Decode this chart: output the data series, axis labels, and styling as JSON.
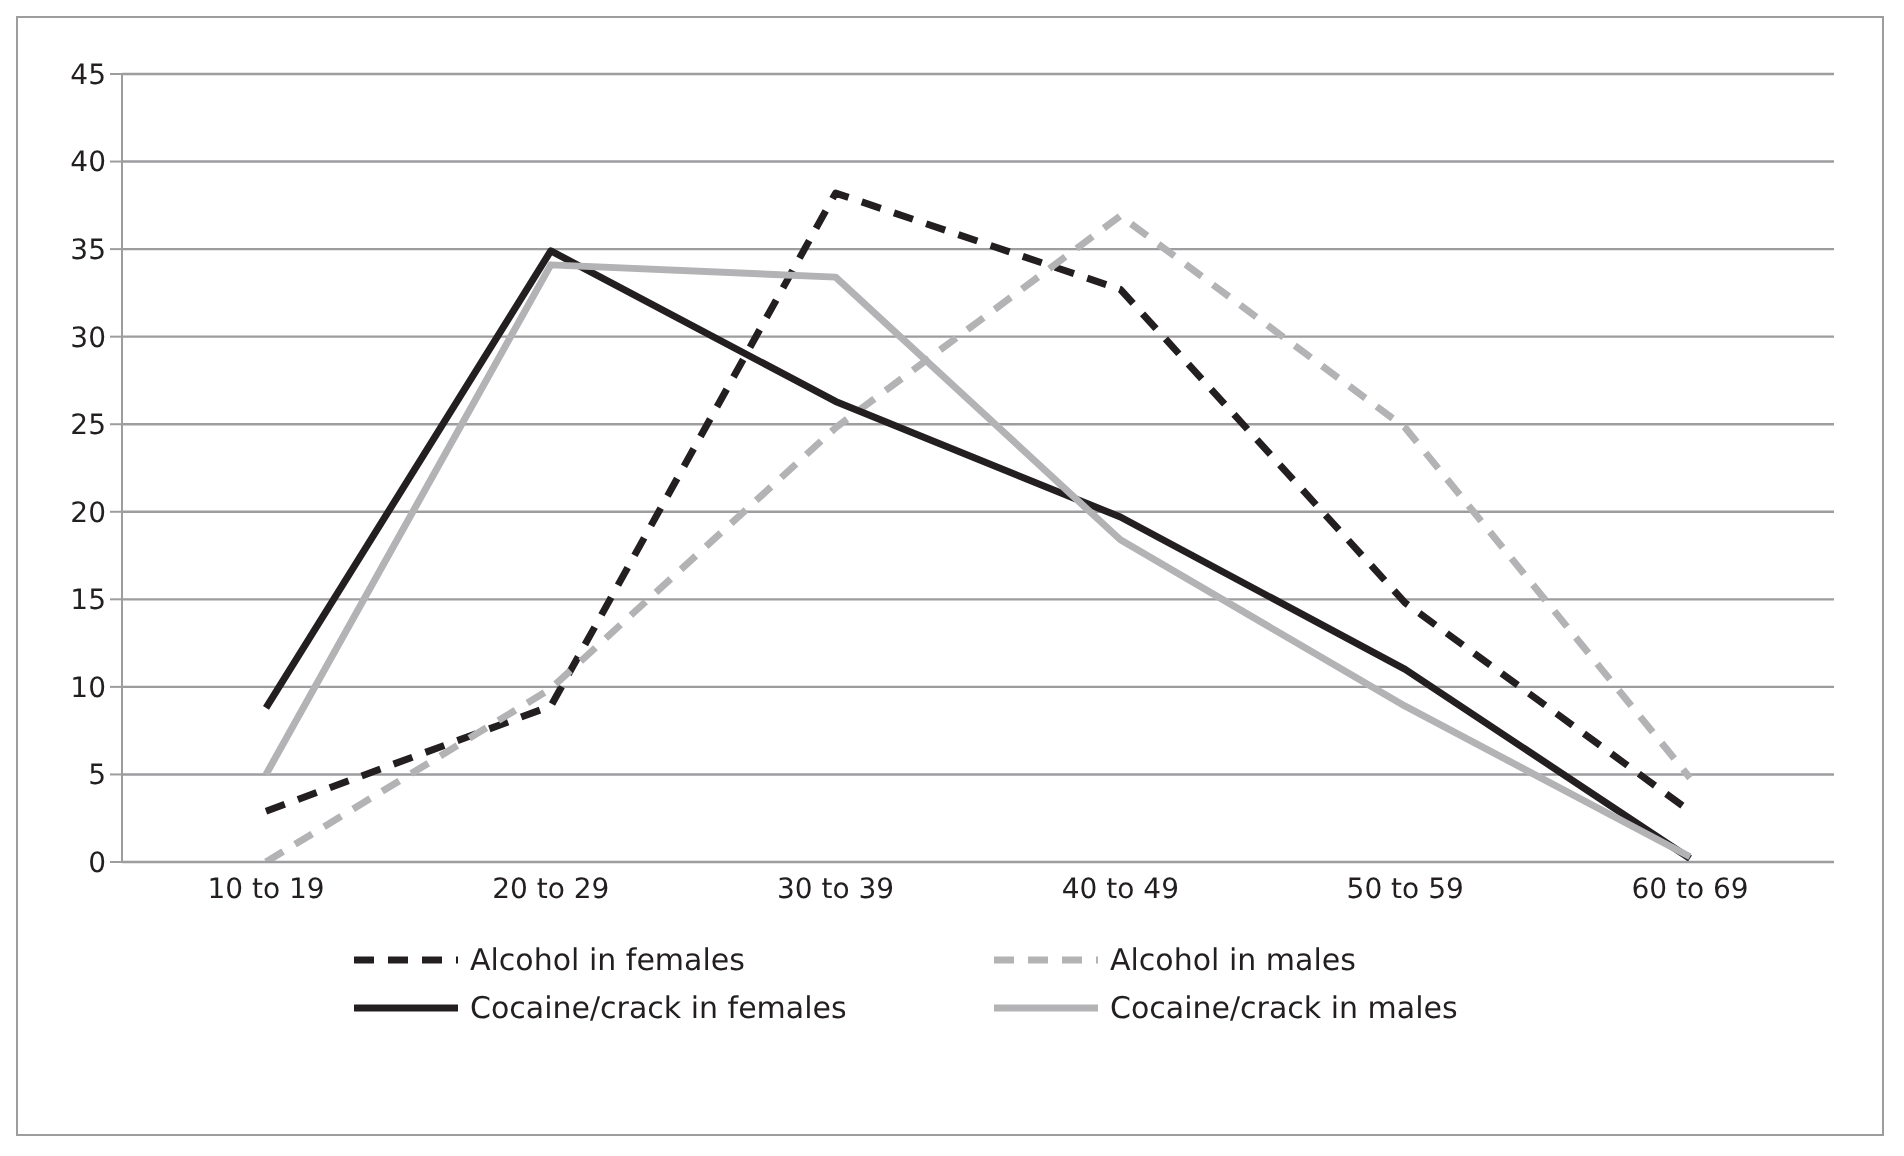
{
  "chart_data": {
    "type": "line",
    "categories": [
      "10 to 19",
      "20 to 29",
      "30 to 39",
      "40 to 49",
      "50 to 59",
      "60 to 69"
    ],
    "series": [
      {
        "name": "Alcohol in females",
        "color": "#231f20",
        "line_style": "dashed",
        "values": [
          2.9,
          8.9,
          38.2,
          32.7,
          14.8,
          2.9
        ]
      },
      {
        "name": "Alcohol in males",
        "color": "#b3b3b5",
        "line_style": "dashed",
        "values": [
          0,
          9.9,
          24.8,
          36.9,
          24.8,
          4.8
        ]
      },
      {
        "name": "Cocaine/crack in females",
        "color": "#231f20",
        "line_style": "solid",
        "values": [
          8.8,
          34.9,
          26.3,
          19.7,
          11.0,
          0.2
        ]
      },
      {
        "name": "Cocaine/crack in males",
        "color": "#b3b3b5",
        "line_style": "solid",
        "values": [
          5,
          34.1,
          33.4,
          18.4,
          8.9,
          0.3
        ]
      }
    ],
    "ylim": [
      0,
      45
    ],
    "yticks": [
      0,
      5,
      10,
      15,
      20,
      25,
      30,
      35,
      40,
      45
    ],
    "grid": "y",
    "legend": "bottom",
    "marker": "none"
  }
}
